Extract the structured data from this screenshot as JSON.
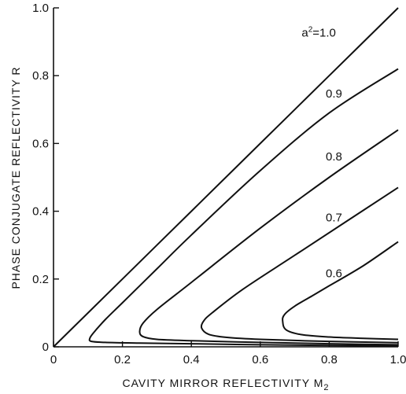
{
  "chart_data": {
    "type": "line",
    "xlabel": "CAVITY MIRROR REFLECTIVITY M",
    "xlabel_sub": "2",
    "ylabel": "PHASE CONJUGATE REFLECTIVITY R",
    "xlim": [
      0,
      1.0
    ],
    "ylim": [
      0,
      1.0
    ],
    "x_ticks": [
      "0",
      "0.2",
      "0.4",
      "0.6",
      "0.8",
      "1.0"
    ],
    "y_ticks": [
      "0",
      "0.2",
      "0.4",
      "0.6",
      "0.8",
      "1.0"
    ],
    "grid": false,
    "series": [
      {
        "name": "a²=1.0",
        "label_prefix": "a",
        "label_sup": "2",
        "label_suffix": "=1.0",
        "points": [
          [
            0,
            0
          ],
          [
            0.2,
            0.2
          ],
          [
            0.4,
            0.4
          ],
          [
            0.6,
            0.6
          ],
          [
            0.8,
            0.8
          ],
          [
            1.0,
            1.0
          ]
        ]
      },
      {
        "name": "0.9",
        "points": [
          [
            1.0,
            0.003
          ],
          [
            0.8,
            0.004
          ],
          [
            0.6,
            0.006
          ],
          [
            0.4,
            0.009
          ],
          [
            0.25,
            0.011
          ],
          [
            0.15,
            0.013
          ],
          [
            0.11,
            0.016
          ],
          [
            0.105,
            0.024
          ],
          [
            0.115,
            0.04
          ],
          [
            0.15,
            0.08
          ],
          [
            0.2,
            0.13
          ],
          [
            0.3,
            0.23
          ],
          [
            0.4,
            0.33
          ],
          [
            0.6,
            0.52
          ],
          [
            0.8,
            0.69
          ],
          [
            1.0,
            0.82
          ]
        ]
      },
      {
        "name": "0.8",
        "points": [
          [
            1.0,
            0.006
          ],
          [
            0.8,
            0.009
          ],
          [
            0.6,
            0.013
          ],
          [
            0.4,
            0.018
          ],
          [
            0.3,
            0.022
          ],
          [
            0.26,
            0.03
          ],
          [
            0.25,
            0.045
          ],
          [
            0.26,
            0.07
          ],
          [
            0.3,
            0.11
          ],
          [
            0.4,
            0.19
          ],
          [
            0.6,
            0.35
          ],
          [
            0.8,
            0.5
          ],
          [
            1.0,
            0.64
          ]
        ]
      },
      {
        "name": "0.7",
        "points": [
          [
            1.0,
            0.012
          ],
          [
            0.8,
            0.016
          ],
          [
            0.6,
            0.022
          ],
          [
            0.5,
            0.028
          ],
          [
            0.45,
            0.037
          ],
          [
            0.43,
            0.055
          ],
          [
            0.435,
            0.075
          ],
          [
            0.46,
            0.1
          ],
          [
            0.55,
            0.17
          ],
          [
            0.7,
            0.27
          ],
          [
            0.85,
            0.37
          ],
          [
            1.0,
            0.47
          ]
        ]
      },
      {
        "name": "0.6",
        "points": [
          [
            1.0,
            0.022
          ],
          [
            0.9,
            0.025
          ],
          [
            0.8,
            0.029
          ],
          [
            0.72,
            0.036
          ],
          [
            0.675,
            0.05
          ],
          [
            0.665,
            0.075
          ],
          [
            0.67,
            0.095
          ],
          [
            0.7,
            0.12
          ],
          [
            0.75,
            0.15
          ],
          [
            0.8,
            0.18
          ],
          [
            0.9,
            0.24
          ],
          [
            1.0,
            0.31
          ]
        ]
      }
    ],
    "labels": [
      {
        "series": 0,
        "x": 0.72,
        "y": 0.915
      },
      {
        "series": 1,
        "x": 0.79,
        "y": 0.735
      },
      {
        "series": 2,
        "x": 0.79,
        "y": 0.55
      },
      {
        "series": 3,
        "x": 0.79,
        "y": 0.37
      },
      {
        "series": 4,
        "x": 0.79,
        "y": 0.205
      }
    ]
  }
}
